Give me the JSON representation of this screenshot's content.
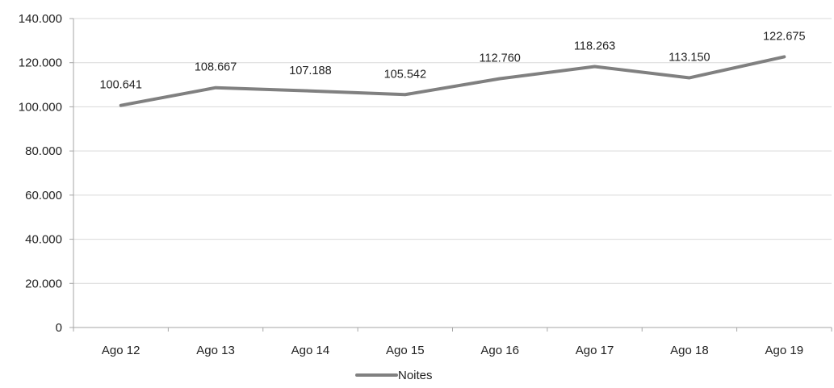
{
  "chart_data": {
    "type": "line",
    "title": "",
    "xlabel": "",
    "ylabel": "",
    "categories": [
      "Ago 12",
      "Ago 13",
      "Ago 14",
      "Ago 15",
      "Ago 16",
      "Ago 17",
      "Ago 18",
      "Ago 19"
    ],
    "series": [
      {
        "name": "Noites",
        "values": [
          100641,
          108667,
          107188,
          105542,
          112760,
          118263,
          113150,
          122675
        ],
        "labels": [
          "100.641",
          "108.667",
          "107.188",
          "105.542",
          "112.760",
          "118.263",
          "113.150",
          "122.675"
        ],
        "color": "#808080"
      }
    ],
    "ylim": [
      0,
      140000
    ],
    "yticks": [
      0,
      20000,
      40000,
      60000,
      80000,
      100000,
      120000,
      140000
    ],
    "ytick_labels": [
      "0",
      "20.000",
      "40.000",
      "60.000",
      "80.000",
      "100.000",
      "120.000",
      "140.000"
    ],
    "grid": true,
    "gridline_color": "#d9d9d9",
    "legend_position": "bottom-center"
  }
}
